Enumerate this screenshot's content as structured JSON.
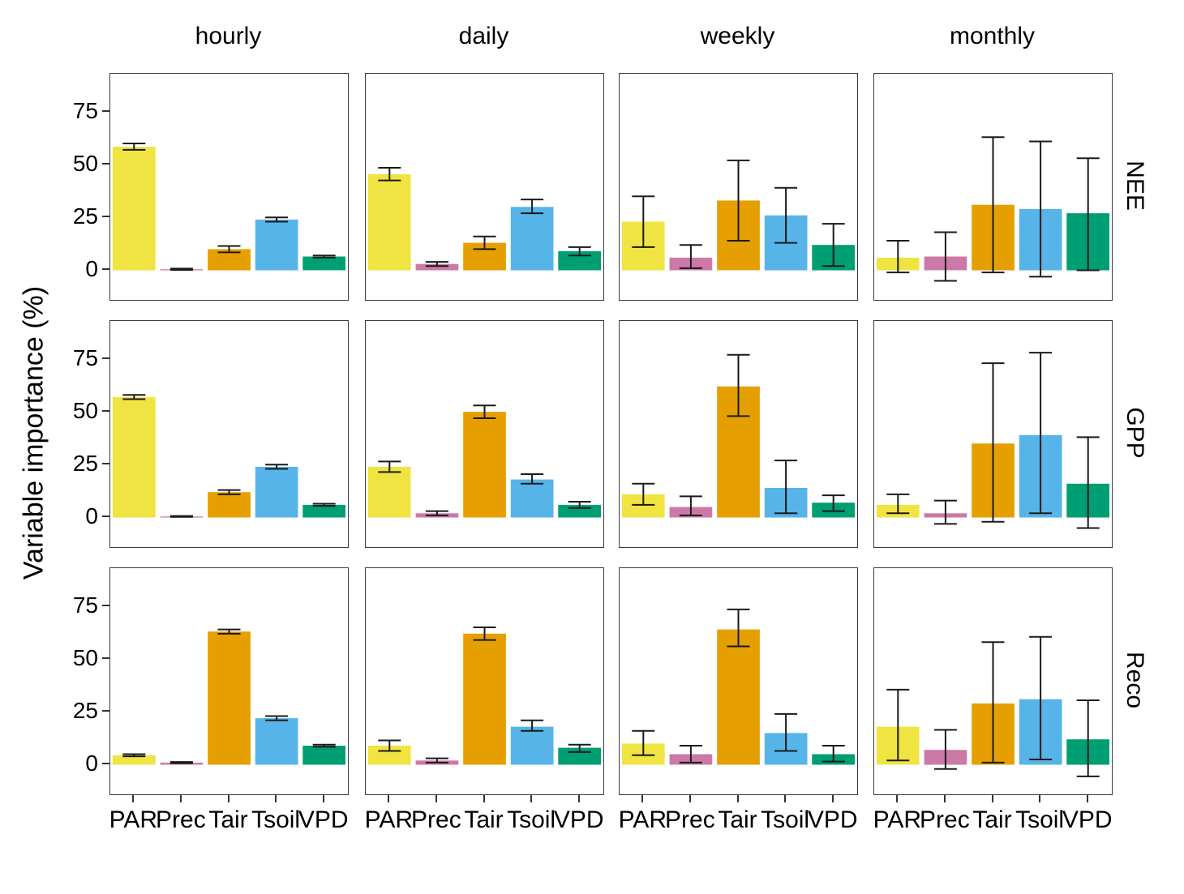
{
  "figure": {
    "ylabel": "Variable importance (%)",
    "col_titles": [
      "hourly",
      "daily",
      "weekly",
      "monthly"
    ],
    "row_titles": [
      "NEE",
      "GPP",
      "Reco"
    ]
  },
  "chart_data": {
    "type": "bar",
    "facet_cols": [
      "hourly",
      "daily",
      "weekly",
      "monthly"
    ],
    "facet_rows": [
      "NEE",
      "GPP",
      "Reco"
    ],
    "categories": [
      "PAR",
      "Prec",
      "Tair",
      "Tsoil",
      "VPD"
    ],
    "colors": {
      "PAR": "#F0E442",
      "Prec": "#CC79A7",
      "Tair": "#E69F00",
      "Tsoil": "#56B4E9",
      "VPD": "#009E73"
    },
    "error_bar_color": "#1a1a1a",
    "ylabel": "Variable importance (%)",
    "yticks": [
      0,
      25,
      50,
      75
    ],
    "ylim": [
      -14,
      93
    ],
    "grid": false,
    "error_bars": true,
    "panels": [
      {
        "row": "NEE",
        "col": "hourly",
        "values": [
          58.5,
          0.5,
          10,
          24,
          6.5
        ],
        "err_lo": [
          57,
          0.2,
          8.5,
          23,
          6
        ],
        "err_hi": [
          60,
          0.8,
          11.5,
          25,
          7
        ]
      },
      {
        "row": "NEE",
        "col": "daily",
        "values": [
          45.5,
          3,
          13,
          30,
          9
        ],
        "err_lo": [
          42.5,
          2,
          10,
          27,
          7
        ],
        "err_hi": [
          48.5,
          4,
          16,
          33.5,
          11
        ]
      },
      {
        "row": "NEE",
        "col": "weekly",
        "values": [
          23,
          6,
          33,
          26,
          12
        ],
        "err_lo": [
          11,
          1,
          14,
          13,
          2
        ],
        "err_hi": [
          35,
          12,
          52,
          39,
          22
        ]
      },
      {
        "row": "NEE",
        "col": "monthly",
        "values": [
          6,
          6.5,
          31,
          29,
          27
        ],
        "err_lo": [
          -1,
          -5,
          -1,
          -3,
          0
        ],
        "err_hi": [
          14,
          18,
          63,
          61,
          53
        ]
      },
      {
        "row": "GPP",
        "col": "hourly",
        "values": [
          57,
          0.5,
          12,
          24,
          6
        ],
        "err_lo": [
          56,
          0.3,
          11,
          23,
          5.5
        ],
        "err_hi": [
          58,
          0.7,
          13,
          25,
          6.5
        ]
      },
      {
        "row": "GPP",
        "col": "daily",
        "values": [
          24,
          2,
          50,
          18,
          6
        ],
        "err_lo": [
          21.5,
          1,
          47,
          16,
          4.5
        ],
        "err_hi": [
          26.5,
          3,
          53,
          20.5,
          7.5
        ]
      },
      {
        "row": "GPP",
        "col": "weekly",
        "values": [
          11,
          5,
          62,
          14,
          7
        ],
        "err_lo": [
          6,
          1,
          48,
          2,
          3
        ],
        "err_hi": [
          16,
          10,
          77,
          27,
          10.5
        ]
      },
      {
        "row": "GPP",
        "col": "monthly",
        "values": [
          6,
          2,
          35,
          39,
          16
        ],
        "err_lo": [
          2,
          -3,
          -2,
          2,
          -5
        ],
        "err_hi": [
          11,
          8,
          73,
          78,
          38
        ]
      },
      {
        "row": "Reco",
        "col": "hourly",
        "values": [
          4.5,
          1,
          63,
          22,
          9
        ],
        "err_lo": [
          4,
          0.7,
          62,
          21,
          8.5
        ],
        "err_hi": [
          5,
          1.3,
          64,
          23,
          9.5
        ]
      },
      {
        "row": "Reco",
        "col": "daily",
        "values": [
          9,
          2,
          62,
          18,
          8
        ],
        "err_lo": [
          6.5,
          1,
          59,
          16,
          6
        ],
        "err_hi": [
          11.5,
          3,
          65,
          21,
          9.5
        ]
      },
      {
        "row": "Reco",
        "col": "weekly",
        "values": [
          10,
          5,
          64,
          15,
          5
        ],
        "err_lo": [
          4.5,
          1,
          56,
          6.5,
          1.5
        ],
        "err_hi": [
          16,
          9,
          73.5,
          24,
          9
        ]
      },
      {
        "row": "Reco",
        "col": "monthly",
        "values": [
          18,
          7,
          29,
          31,
          12
        ],
        "err_lo": [
          2,
          -2,
          1,
          2.5,
          -5.5
        ],
        "err_hi": [
          35.5,
          16.5,
          58,
          60.5,
          30.5
        ]
      }
    ]
  }
}
